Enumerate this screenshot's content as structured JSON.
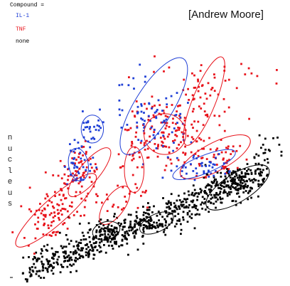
{
  "credit": "[Andrew Moore]",
  "chart_data": {
    "type": "scatter",
    "title": "",
    "ylabel": "nucleus",
    "xlabel": "",
    "grid": false,
    "xlim": [
      0,
      100
    ],
    "ylim": [
      0,
      100
    ],
    "legend": {
      "title": "Compound =",
      "placement": "top-left",
      "entries": [
        {
          "label": "IL-1",
          "color": "#1f3fd6"
        },
        {
          "label": "TNF",
          "color": "#e8141c"
        },
        {
          "label": "none",
          "color": "#000000"
        }
      ]
    },
    "series": [
      {
        "name": "IL-1",
        "color": "#1f3fd6",
        "clusters": [
          {
            "cx": 48,
            "cy": 68,
            "sx": 5.5,
            "sy": 7.5,
            "n": 40
          },
          {
            "cx": 57,
            "cy": 62,
            "sx": 5,
            "sy": 5,
            "n": 25
          },
          {
            "cx": 30,
            "cy": 60,
            "sx": 2.5,
            "sy": 4,
            "n": 28
          },
          {
            "cx": 25,
            "cy": 45,
            "sx": 2.5,
            "sy": 4.5,
            "n": 38
          },
          {
            "cx": 69,
            "cy": 44,
            "sx": 6,
            "sy": 2.8,
            "n": 45
          },
          {
            "cx": 52,
            "cy": 55,
            "sx": 5,
            "sy": 5,
            "n": 12
          }
        ]
      },
      {
        "name": "TNF",
        "color": "#e8141c",
        "clusters": [
          {
            "cx": 14,
            "cy": 25,
            "sx": 4.5,
            "sy": 5,
            "n": 80
          },
          {
            "cx": 23,
            "cy": 35,
            "sx": 4,
            "sy": 4.5,
            "n": 45
          },
          {
            "cx": 26,
            "cy": 45,
            "sx": 3,
            "sy": 4.5,
            "n": 40
          },
          {
            "cx": 55,
            "cy": 58,
            "sx": 6,
            "sy": 6,
            "n": 110
          },
          {
            "cx": 68,
            "cy": 70,
            "sx": 5.5,
            "sy": 7,
            "n": 55
          },
          {
            "cx": 73,
            "cy": 48,
            "sx": 7,
            "sy": 3.5,
            "n": 55
          },
          {
            "cx": 45,
            "cy": 43,
            "sx": 3,
            "sy": 9,
            "n": 35
          },
          {
            "cx": 38,
            "cy": 32,
            "sx": 3.5,
            "sy": 5,
            "n": 18
          },
          {
            "cx": 72,
            "cy": 82,
            "sx": 10,
            "sy": 3,
            "n": 20
          }
        ]
      },
      {
        "name": "none",
        "color": "#000000",
        "band": {
          "x0": 7,
          "y0": 3,
          "x1": 92,
          "y1": 42,
          "jitter": 3.2,
          "n": 650
        },
        "clusters": [
          {
            "cx": 80,
            "cy": 38,
            "sx": 5,
            "sy": 3.5,
            "n": 90
          },
          {
            "cx": 35,
            "cy": 18,
            "sx": 4,
            "sy": 3,
            "n": 55
          },
          {
            "cx": 53,
            "cy": 22,
            "sx": 5,
            "sy": 2.5,
            "n": 45
          },
          {
            "cx": 93,
            "cy": 51,
            "sx": 3,
            "sy": 3,
            "n": 20
          }
        ]
      }
    ],
    "ellipses": [
      {
        "series": "TNF",
        "cx": 17,
        "cy": 27,
        "rx": 19,
        "ry": 5,
        "angle": 42
      },
      {
        "series": "TNF",
        "cx": 29,
        "cy": 42,
        "rx": 11,
        "ry": 4,
        "angle": 50
      },
      {
        "series": "TNF",
        "cx": 38,
        "cy": 29,
        "rx": 8,
        "ry": 4,
        "angle": 55
      },
      {
        "series": "TNF",
        "cx": 45,
        "cy": 43,
        "rx": 3.5,
        "ry": 9,
        "angle": 0
      },
      {
        "series": "TNF",
        "cx": 56,
        "cy": 57,
        "rx": 7.5,
        "ry": 8,
        "angle": 0
      },
      {
        "series": "TNF",
        "cx": 70,
        "cy": 70,
        "rx": 17,
        "ry": 4.5,
        "angle": 68
      },
      {
        "series": "TNF",
        "cx": 74,
        "cy": 48,
        "rx": 14,
        "ry": 5.5,
        "angle": 28
      },
      {
        "series": "IL-1",
        "cx": 30,
        "cy": 59,
        "rx": 4,
        "ry": 5.5,
        "angle": 0
      },
      {
        "series": "IL-1",
        "cx": 25,
        "cy": 45,
        "rx": 3.5,
        "ry": 6.5,
        "angle": 10
      },
      {
        "series": "IL-1",
        "cx": 52,
        "cy": 68,
        "rx": 20,
        "ry": 7.5,
        "angle": 58
      },
      {
        "series": "IL-1",
        "cx": 70,
        "cy": 45,
        "rx": 12,
        "ry": 3.5,
        "angle": 22
      },
      {
        "series": "none",
        "cx": 82,
        "cy": 36,
        "rx": 13,
        "ry": 5.5,
        "angle": 32
      },
      {
        "series": "none",
        "cx": 35,
        "cy": 19,
        "rx": 5,
        "ry": 3.5,
        "angle": 15
      },
      {
        "series": "none",
        "cx": 53,
        "cy": 22,
        "rx": 6.5,
        "ry": 3.5,
        "angle": 25
      }
    ]
  }
}
